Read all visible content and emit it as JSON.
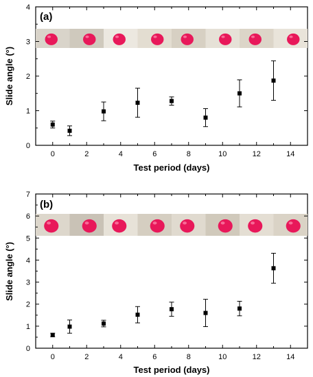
{
  "chart_data": [
    {
      "type": "scatter",
      "panel_label": "(a)",
      "xlabel": "Test period (days)",
      "ylabel": "Slide angle (°)",
      "xlim": [
        -1,
        15
      ],
      "ylim": [
        0,
        4
      ],
      "xticks": [
        0,
        2,
        4,
        6,
        8,
        10,
        12,
        14
      ],
      "yticks": [
        0,
        1,
        2,
        3,
        4
      ],
      "x": [
        0,
        1,
        3,
        5,
        7,
        9,
        11,
        13
      ],
      "y": [
        0.6,
        0.42,
        0.98,
        1.23,
        1.28,
        0.8,
        1.5,
        1.87
      ],
      "error": [
        0.1,
        0.14,
        0.27,
        0.42,
        0.12,
        0.26,
        0.39,
        0.57
      ],
      "droplet_photos": 8,
      "droplet_color": "#e8185a",
      "marker_color": "#000000"
    },
    {
      "type": "scatter",
      "panel_label": "(b)",
      "xlabel": "Test period (days)",
      "ylabel": "Slide angle (°)",
      "xlim": [
        -1,
        15
      ],
      "ylim": [
        0,
        7
      ],
      "xticks": [
        0,
        2,
        4,
        6,
        8,
        10,
        12,
        14
      ],
      "yticks": [
        0,
        1,
        2,
        3,
        4,
        5,
        6,
        7
      ],
      "x": [
        0,
        1,
        3,
        5,
        7,
        9,
        11,
        13
      ],
      "y": [
        0.6,
        0.98,
        1.12,
        1.52,
        1.77,
        1.6,
        1.8,
        3.63
      ],
      "error": [
        0.08,
        0.3,
        0.15,
        0.37,
        0.32,
        0.62,
        0.33,
        0.68
      ],
      "droplet_photos": 8,
      "droplet_color": "#e8185a",
      "marker_color": "#000000"
    }
  ]
}
